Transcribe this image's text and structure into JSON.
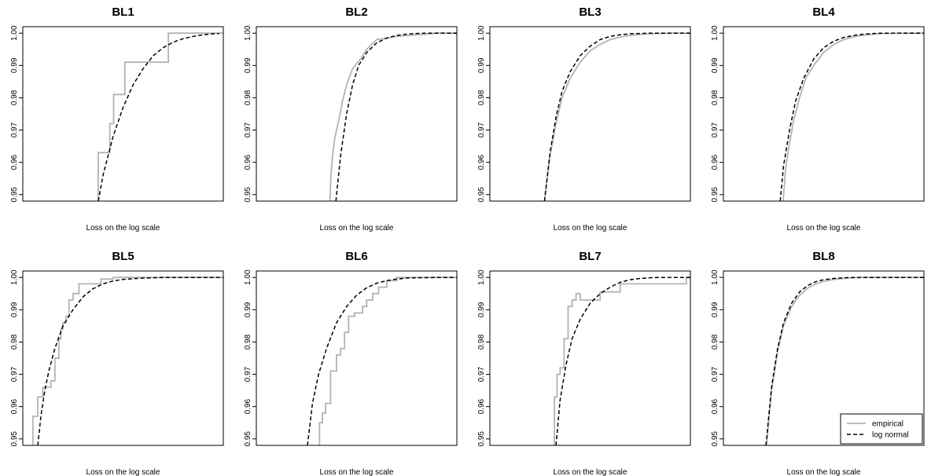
{
  "chart_data": [
    {
      "type": "line",
      "title": "BL1",
      "xlabel": "Loss on the log scale",
      "ylabel": "",
      "xlim": [
        0,
        1
      ],
      "ylim": [
        0.948,
        1.002
      ],
      "yticks": [
        "0.95",
        "0.96",
        "0.97",
        "0.98",
        "0.99",
        "1.00"
      ],
      "series": [
        {
          "name": "empirical",
          "color": "#b3b3b3",
          "style": "step",
          "x": [
            0.376,
            0.376,
            0.434,
            0.434,
            0.453,
            0.453,
            0.509,
            0.509,
            0.726,
            0.726,
            1.0
          ],
          "y": [
            0.948,
            0.963,
            0.963,
            0.972,
            0.972,
            0.981,
            0.981,
            0.991,
            0.991,
            1.0,
            1.0
          ]
        },
        {
          "name": "log normal",
          "color": "#000000",
          "style": "dashed",
          "x": [
            0.377,
            0.4,
            0.45,
            0.5,
            0.55,
            0.6,
            0.65,
            0.7,
            0.75,
            0.8,
            0.85,
            0.9,
            0.95,
            0.98
          ],
          "y": [
            0.948,
            0.956,
            0.968,
            0.977,
            0.984,
            0.989,
            0.993,
            0.9955,
            0.9972,
            0.9983,
            0.999,
            0.9995,
            0.9998,
            0.9999
          ]
        }
      ]
    },
    {
      "type": "line",
      "title": "BL2",
      "xlabel": "Loss on the log scale",
      "ylabel": "",
      "xlim": [
        0,
        1
      ],
      "ylim": [
        0.948,
        1.002
      ],
      "yticks": [
        "0.95",
        "0.96",
        "0.97",
        "0.98",
        "0.99",
        "1.00"
      ],
      "series": [
        {
          "name": "empirical",
          "color": "#b3b3b3",
          "style": "step",
          "x": [
            0.367,
            0.372,
            0.38,
            0.39,
            0.4,
            0.415,
            0.43,
            0.45,
            0.48,
            0.52,
            0.55,
            0.6,
            0.65,
            0.7,
            0.8,
            0.9,
            1.0
          ],
          "y": [
            0.948,
            0.956,
            0.962,
            0.967,
            0.97,
            0.974,
            0.979,
            0.984,
            0.989,
            0.992,
            0.995,
            0.998,
            0.9984,
            0.999,
            0.9995,
            1.0,
            1.0
          ]
        },
        {
          "name": "log normal",
          "color": "#000000",
          "style": "dashed",
          "x": [
            0.397,
            0.42,
            0.45,
            0.48,
            0.51,
            0.55,
            0.6,
            0.65,
            0.7,
            0.75,
            0.8,
            0.85,
            0.9,
            1.0
          ],
          "y": [
            0.948,
            0.962,
            0.975,
            0.984,
            0.99,
            0.994,
            0.997,
            0.9985,
            0.9993,
            0.9997,
            0.9999,
            1.0,
            1.0,
            1.0
          ]
        }
      ]
    },
    {
      "type": "line",
      "title": "BL3",
      "xlabel": "Loss on the log scale",
      "ylabel": "",
      "xlim": [
        0,
        1
      ],
      "ylim": [
        0.948,
        1.002
      ],
      "yticks": [
        "0.95",
        "0.96",
        "0.97",
        "0.98",
        "0.99",
        "1.00"
      ],
      "series": [
        {
          "name": "empirical",
          "color": "#b3b3b3",
          "style": "line",
          "x": [
            0.272,
            0.3,
            0.33,
            0.36,
            0.4,
            0.45,
            0.5,
            0.55,
            0.6,
            0.65,
            0.7,
            0.75,
            0.8,
            0.85,
            0.9,
            1.0
          ],
          "y": [
            0.948,
            0.962,
            0.972,
            0.98,
            0.986,
            0.991,
            0.9945,
            0.9965,
            0.998,
            0.9988,
            0.9993,
            0.9996,
            0.9998,
            0.9999,
            1.0,
            1.0
          ]
        },
        {
          "name": "log normal",
          "color": "#000000",
          "style": "dashed",
          "x": [
            0.272,
            0.3,
            0.33,
            0.36,
            0.4,
            0.45,
            0.5,
            0.55,
            0.6,
            0.65,
            0.7,
            0.75,
            0.8,
            0.85,
            0.9,
            1.0
          ],
          "y": [
            0.948,
            0.963,
            0.974,
            0.982,
            0.988,
            0.993,
            0.996,
            0.998,
            0.999,
            0.9995,
            0.9998,
            0.9999,
            1.0,
            1.0,
            1.0,
            1.0
          ]
        }
      ]
    },
    {
      "type": "line",
      "title": "BL4",
      "xlabel": "Loss on the log scale",
      "ylabel": "",
      "xlim": [
        0,
        1
      ],
      "ylim": [
        0.948,
        1.002
      ],
      "yticks": [
        "0.95",
        "0.96",
        "0.97",
        "0.98",
        "0.99",
        "1.00"
      ],
      "series": [
        {
          "name": "empirical",
          "color": "#b3b3b3",
          "style": "step",
          "x": [
            0.298,
            0.31,
            0.33,
            0.35,
            0.38,
            0.41,
            0.45,
            0.5,
            0.55,
            0.6,
            0.65,
            0.7,
            0.75,
            0.8,
            0.9,
            1.0
          ],
          "y": [
            0.948,
            0.958,
            0.966,
            0.973,
            0.98,
            0.986,
            0.99,
            0.994,
            0.9965,
            0.998,
            0.9989,
            0.9994,
            0.9997,
            0.9999,
            1.0,
            1.0
          ]
        },
        {
          "name": "log normal",
          "color": "#000000",
          "style": "dashed",
          "x": [
            0.283,
            0.3,
            0.33,
            0.36,
            0.4,
            0.45,
            0.5,
            0.55,
            0.6,
            0.65,
            0.7,
            0.75,
            0.8,
            0.9,
            1.0
          ],
          "y": [
            0.948,
            0.959,
            0.97,
            0.979,
            0.986,
            0.992,
            0.9955,
            0.9975,
            0.9987,
            0.9993,
            0.9997,
            0.9999,
            1.0,
            1.0,
            1.0
          ]
        }
      ]
    },
    {
      "type": "line",
      "title": "BL5",
      "xlabel": "Loss on the log scale",
      "ylabel": "",
      "xlim": [
        0,
        1
      ],
      "ylim": [
        0.948,
        1.002
      ],
      "yticks": [
        "0.95",
        "0.96",
        "0.97",
        "0.98",
        "0.99",
        "1.00"
      ],
      "series": [
        {
          "name": "empirical",
          "color": "#b3b3b3",
          "style": "step",
          "x": [
            0.05,
            0.05,
            0.075,
            0.075,
            0.1,
            0.1,
            0.14,
            0.14,
            0.16,
            0.16,
            0.18,
            0.18,
            0.19,
            0.19,
            0.2,
            0.2,
            0.215,
            0.215,
            0.23,
            0.23,
            0.25,
            0.25,
            0.28,
            0.28,
            0.39,
            0.39,
            0.45,
            0.45,
            1.0
          ],
          "y": [
            0.948,
            0.957,
            0.957,
            0.963,
            0.963,
            0.966,
            0.966,
            0.968,
            0.968,
            0.975,
            0.975,
            0.981,
            0.981,
            0.984,
            0.984,
            0.986,
            0.986,
            0.988,
            0.988,
            0.993,
            0.993,
            0.995,
            0.995,
            0.998,
            0.998,
            0.9995,
            0.9995,
            1.0,
            1.0
          ]
        },
        {
          "name": "log normal",
          "color": "#000000",
          "style": "dashed",
          "x": [
            0.075,
            0.09,
            0.11,
            0.13,
            0.16,
            0.2,
            0.25,
            0.3,
            0.35,
            0.4,
            0.45,
            0.5,
            0.6,
            0.7,
            0.8,
            1.0
          ],
          "y": [
            0.948,
            0.957,
            0.965,
            0.971,
            0.978,
            0.985,
            0.99,
            0.994,
            0.9965,
            0.998,
            0.9989,
            0.9994,
            0.9998,
            1.0,
            1.0,
            1.0
          ]
        }
      ]
    },
    {
      "type": "line",
      "title": "BL6",
      "xlabel": "Loss on the log scale",
      "ylabel": "",
      "xlim": [
        0,
        1
      ],
      "ylim": [
        0.948,
        1.002
      ],
      "yticks": [
        "0.95",
        "0.96",
        "0.97",
        "0.98",
        "0.99",
        "1.00"
      ],
      "series": [
        {
          "name": "empirical",
          "color": "#b3b3b3",
          "style": "step",
          "x": [
            0.315,
            0.315,
            0.33,
            0.33,
            0.345,
            0.345,
            0.37,
            0.37,
            0.4,
            0.4,
            0.42,
            0.42,
            0.44,
            0.44,
            0.46,
            0.46,
            0.49,
            0.49,
            0.53,
            0.53,
            0.55,
            0.55,
            0.58,
            0.58,
            0.61,
            0.61,
            0.65,
            0.65,
            0.7,
            0.7,
            1.0
          ],
          "y": [
            0.948,
            0.955,
            0.955,
            0.958,
            0.958,
            0.961,
            0.961,
            0.971,
            0.971,
            0.976,
            0.976,
            0.978,
            0.978,
            0.983,
            0.983,
            0.988,
            0.988,
            0.989,
            0.989,
            0.991,
            0.991,
            0.993,
            0.993,
            0.995,
            0.995,
            0.997,
            0.997,
            0.999,
            0.999,
            1.0,
            1.0
          ]
        },
        {
          "name": "log normal",
          "color": "#000000",
          "style": "dashed",
          "x": [
            0.255,
            0.28,
            0.31,
            0.35,
            0.4,
            0.45,
            0.5,
            0.55,
            0.6,
            0.65,
            0.7,
            0.75,
            0.8,
            0.9,
            1.0
          ],
          "y": [
            0.948,
            0.961,
            0.97,
            0.978,
            0.986,
            0.991,
            0.9945,
            0.9968,
            0.9982,
            0.999,
            0.9995,
            0.9998,
            0.9999,
            1.0,
            1.0
          ]
        }
      ]
    },
    {
      "type": "line",
      "title": "BL7",
      "xlabel": "Loss on the log scale",
      "ylabel": "",
      "xlim": [
        0,
        1
      ],
      "ylim": [
        0.948,
        1.002
      ],
      "yticks": [
        "0.95",
        "0.96",
        "0.97",
        "0.98",
        "0.99",
        "1.00"
      ],
      "series": [
        {
          "name": "empirical",
          "color": "#b3b3b3",
          "style": "step",
          "x": [
            0.322,
            0.322,
            0.335,
            0.335,
            0.35,
            0.35,
            0.37,
            0.37,
            0.39,
            0.39,
            0.41,
            0.41,
            0.43,
            0.43,
            0.45,
            0.45,
            0.55,
            0.55,
            0.65,
            0.65,
            0.75,
            0.75,
            0.98,
            0.98,
            1.0
          ],
          "y": [
            0.948,
            0.963,
            0.963,
            0.97,
            0.97,
            0.972,
            0.972,
            0.981,
            0.981,
            0.991,
            0.991,
            0.993,
            0.993,
            0.995,
            0.995,
            0.993,
            0.993,
            0.9955,
            0.9955,
            0.998,
            0.998,
            0.998,
            0.998,
            1.0,
            1.0
          ]
        },
        {
          "name": "log normal",
          "color": "#000000",
          "style": "dashed",
          "x": [
            0.33,
            0.35,
            0.38,
            0.41,
            0.45,
            0.5,
            0.55,
            0.6,
            0.65,
            0.7,
            0.75,
            0.8,
            0.85,
            0.9,
            1.0
          ],
          "y": [
            0.948,
            0.962,
            0.973,
            0.981,
            0.987,
            0.992,
            0.995,
            0.997,
            0.9985,
            0.9993,
            0.9997,
            0.9999,
            1.0,
            1.0,
            1.0
          ]
        }
      ]
    },
    {
      "type": "line",
      "title": "BL8",
      "xlabel": "Loss on the log scale",
      "ylabel": "",
      "xlim": [
        0,
        1
      ],
      "ylim": [
        0.948,
        1.002
      ],
      "yticks": [
        "0.95",
        "0.96",
        "0.97",
        "0.98",
        "0.99",
        "1.00"
      ],
      "legend": {
        "position": "bottom-right",
        "entries": [
          "empirical",
          "log normal"
        ]
      },
      "series": [
        {
          "name": "empirical",
          "color": "#b3b3b3",
          "style": "line",
          "x": [
            0.215,
            0.24,
            0.27,
            0.3,
            0.34,
            0.38,
            0.42,
            0.46,
            0.5,
            0.55,
            0.6,
            0.65,
            0.7,
            0.8,
            0.9,
            1.0
          ],
          "y": [
            0.948,
            0.965,
            0.977,
            0.985,
            0.991,
            0.9945,
            0.9967,
            0.998,
            0.9988,
            0.9994,
            0.9997,
            0.9999,
            1.0,
            1.0,
            1.0,
            1.0
          ]
        },
        {
          "name": "log normal",
          "color": "#000000",
          "style": "dashed",
          "x": [
            0.212,
            0.24,
            0.27,
            0.3,
            0.34,
            0.38,
            0.42,
            0.46,
            0.5,
            0.55,
            0.6,
            0.65,
            0.7,
            0.8,
            0.9,
            1.0
          ],
          "y": [
            0.948,
            0.966,
            0.978,
            0.986,
            0.992,
            0.9955,
            0.9975,
            0.9987,
            0.9993,
            0.9997,
            0.9999,
            1.0,
            1.0,
            1.0,
            1.0,
            1.0
          ]
        }
      ]
    }
  ]
}
